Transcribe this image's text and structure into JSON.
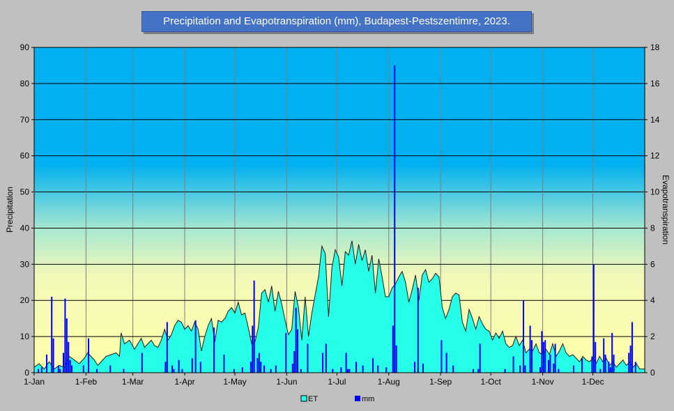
{
  "chart_data": {
    "type": "bar",
    "title": "Precipitation and Evapotranspiration (mm), Budapest-Pestszentimre,  2023.",
    "ylabel": "Precipitation",
    "y2label": "Evapotranspiration",
    "ylim": [
      0,
      90
    ],
    "y2lim": [
      0,
      18
    ],
    "yticks": [
      "0",
      "10",
      "20",
      "30",
      "40",
      "50",
      "60",
      "70",
      "80",
      "90"
    ],
    "y2ticks": [
      "0",
      "2",
      "4",
      "6",
      "8",
      "10",
      "12",
      "14",
      "16",
      "18"
    ],
    "xlim": [
      0,
      365
    ],
    "month_ticks": [
      {
        "label": "1-Jan",
        "day": 0
      },
      {
        "label": "1-Feb",
        "day": 31
      },
      {
        "label": "1-Mar",
        "day": 59
      },
      {
        "label": "1-Apr",
        "day": 90
      },
      {
        "label": "1-May",
        "day": 120
      },
      {
        "label": "1-Jun",
        "day": 151
      },
      {
        "label": "1-Jul",
        "day": 181
      },
      {
        "label": "1-Aug",
        "day": 212
      },
      {
        "label": "1-Sep",
        "day": 243
      },
      {
        "label": "1-Oct",
        "day": 273
      },
      {
        "label": "1-Nov",
        "day": 304
      },
      {
        "label": "1-Dec",
        "day": 334
      }
    ],
    "grid": true,
    "legend_position": "bottom",
    "series": [
      {
        "name": "ET",
        "type": "area",
        "color": "#26ffe8",
        "points": [
          [
            0,
            0.3
          ],
          [
            3,
            0.5
          ],
          [
            6,
            0.2
          ],
          [
            9,
            0.6
          ],
          [
            12,
            0.2
          ],
          [
            15,
            0.4
          ],
          [
            18,
            0.3
          ],
          [
            21,
            0.9
          ],
          [
            24,
            0.7
          ],
          [
            27,
            0.5
          ],
          [
            30,
            0.8
          ],
          [
            32,
            1.1
          ],
          [
            34,
            0.9
          ],
          [
            36,
            0.7
          ],
          [
            38,
            0.4
          ],
          [
            40,
            0.6
          ],
          [
            43,
            0.9
          ],
          [
            46,
            1.0
          ],
          [
            49,
            1.1
          ],
          [
            51,
            0.9
          ],
          [
            52,
            2.2
          ],
          [
            54,
            1.6
          ],
          [
            57,
            1.8
          ],
          [
            60,
            1.3
          ],
          [
            62,
            1.6
          ],
          [
            64,
            1.9
          ],
          [
            66,
            1.4
          ],
          [
            68,
            1.6
          ],
          [
            70,
            1.8
          ],
          [
            72,
            1.5
          ],
          [
            74,
            1.4
          ],
          [
            76,
            1.8
          ],
          [
            78,
            2.4
          ],
          [
            80,
            1.8
          ],
          [
            82,
            2.1
          ],
          [
            84,
            2.6
          ],
          [
            86,
            2.9
          ],
          [
            88,
            2.8
          ],
          [
            90,
            2.4
          ],
          [
            92,
            2.6
          ],
          [
            94,
            2.3
          ],
          [
            96,
            2.8
          ],
          [
            98,
            2.4
          ],
          [
            100,
            1.2
          ],
          [
            102,
            2.0
          ],
          [
            104,
            2.6
          ],
          [
            106,
            3.0
          ],
          [
            108,
            1.7
          ],
          [
            110,
            2.9
          ],
          [
            112,
            2.8
          ],
          [
            114,
            3.0
          ],
          [
            116,
            3.4
          ],
          [
            118,
            3.6
          ],
          [
            120,
            3.3
          ],
          [
            122,
            3.9
          ],
          [
            124,
            3.2
          ],
          [
            126,
            3.3
          ],
          [
            128,
            2.5
          ],
          [
            130,
            1.6
          ],
          [
            132,
            1.7
          ],
          [
            134,
            2.5
          ],
          [
            136,
            4.4
          ],
          [
            138,
            4.6
          ],
          [
            140,
            3.9
          ],
          [
            142,
            4.8
          ],
          [
            144,
            3.4
          ],
          [
            146,
            4.5
          ],
          [
            148,
            3.8
          ],
          [
            150,
            2.9
          ],
          [
            152,
            2.1
          ],
          [
            154,
            2.4
          ],
          [
            156,
            4.5
          ],
          [
            158,
            3.6
          ],
          [
            160,
            1.8
          ],
          [
            162,
            4.2
          ],
          [
            164,
            2.0
          ],
          [
            166,
            3.3
          ],
          [
            168,
            4.3
          ],
          [
            170,
            5.3
          ],
          [
            172,
            7.0
          ],
          [
            174,
            6.6
          ],
          [
            176,
            3.1
          ],
          [
            178,
            5.8
          ],
          [
            180,
            6.8
          ],
          [
            182,
            6.4
          ],
          [
            184,
            4.8
          ],
          [
            186,
            6.7
          ],
          [
            188,
            6.5
          ],
          [
            190,
            7.3
          ],
          [
            192,
            6.0
          ],
          [
            194,
            7.1
          ],
          [
            196,
            6.2
          ],
          [
            198,
            6.8
          ],
          [
            200,
            5.6
          ],
          [
            202,
            6.5
          ],
          [
            204,
            4.4
          ],
          [
            206,
            6.3
          ],
          [
            208,
            5.3
          ],
          [
            210,
            4.2
          ],
          [
            212,
            4.2
          ],
          [
            214,
            4.7
          ],
          [
            216,
            4.9
          ],
          [
            218,
            5.3
          ],
          [
            220,
            5.6
          ],
          [
            222,
            5.0
          ],
          [
            224,
            3.9
          ],
          [
            226,
            4.6
          ],
          [
            228,
            5.4
          ],
          [
            230,
            4.0
          ],
          [
            232,
            5.4
          ],
          [
            234,
            5.7
          ],
          [
            236,
            5.0
          ],
          [
            238,
            5.2
          ],
          [
            240,
            5.5
          ],
          [
            242,
            5.3
          ],
          [
            244,
            3.6
          ],
          [
            246,
            3.0
          ],
          [
            248,
            3.5
          ],
          [
            250,
            4.2
          ],
          [
            252,
            4.4
          ],
          [
            254,
            4.3
          ],
          [
            256,
            2.8
          ],
          [
            258,
            2.3
          ],
          [
            260,
            3.5
          ],
          [
            262,
            3.0
          ],
          [
            264,
            2.4
          ],
          [
            266,
            3.1
          ],
          [
            268,
            2.7
          ],
          [
            270,
            2.4
          ],
          [
            272,
            2.3
          ],
          [
            274,
            1.8
          ],
          [
            276,
            2.2
          ],
          [
            278,
            1.9
          ],
          [
            280,
            2.3
          ],
          [
            282,
            1.6
          ],
          [
            284,
            1.4
          ],
          [
            286,
            1.5
          ],
          [
            288,
            2.0
          ],
          [
            290,
            1.5
          ],
          [
            292,
            1.8
          ],
          [
            294,
            1.1
          ],
          [
            296,
            1.3
          ],
          [
            298,
            1.2
          ],
          [
            300,
            1.6
          ],
          [
            302,
            1.1
          ],
          [
            304,
            1.0
          ],
          [
            306,
            1.3
          ],
          [
            308,
            1.0
          ],
          [
            310,
            1.6
          ],
          [
            312,
            0.9
          ],
          [
            314,
            1.2
          ],
          [
            316,
            1.6
          ],
          [
            318,
            1.1
          ],
          [
            320,
            0.9
          ],
          [
            322,
            1.0
          ],
          [
            324,
            0.8
          ],
          [
            326,
            0.6
          ],
          [
            328,
            0.9
          ],
          [
            330,
            0.7
          ],
          [
            332,
            0.6
          ],
          [
            334,
            0.8
          ],
          [
            336,
            0.5
          ],
          [
            338,
            0.9
          ],
          [
            340,
            0.6
          ],
          [
            342,
            0.8
          ],
          [
            344,
            0.4
          ],
          [
            346,
            0.6
          ],
          [
            348,
            0.3
          ],
          [
            350,
            0.5
          ],
          [
            352,
            0.7
          ],
          [
            354,
            0.4
          ],
          [
            356,
            0.6
          ],
          [
            358,
            0.3
          ],
          [
            360,
            0.5
          ],
          [
            362,
            0.2
          ],
          [
            365,
            0.2
          ]
        ]
      },
      {
        "name": "mm",
        "type": "bar",
        "color": "#0000ff",
        "points": [
          [
            2,
            1.0
          ],
          [
            4,
            1.5
          ],
          [
            7,
            5.0
          ],
          [
            10,
            21.0
          ],
          [
            11,
            9.5
          ],
          [
            14,
            2.0
          ],
          [
            15,
            1.0
          ],
          [
            17,
            5.5
          ],
          [
            18,
            20.5
          ],
          [
            19,
            15.0
          ],
          [
            20,
            8.5
          ],
          [
            21,
            3.5
          ],
          [
            22,
            2.0
          ],
          [
            29,
            2.0
          ],
          [
            32,
            9.5
          ],
          [
            37,
            1.0
          ],
          [
            45,
            2.0
          ],
          [
            53,
            1.0
          ],
          [
            64,
            5.5
          ],
          [
            78,
            3.0
          ],
          [
            79,
            14.0
          ],
          [
            82,
            2.0
          ],
          [
            83,
            1.0
          ],
          [
            86,
            3.5
          ],
          [
            88,
            1.0
          ],
          [
            94,
            4.0
          ],
          [
            96,
            14.5
          ],
          [
            99,
            3.0
          ],
          [
            107,
            12.5
          ],
          [
            113,
            5.0
          ],
          [
            119,
            1.0
          ],
          [
            124,
            1.5
          ],
          [
            129,
            3.0
          ],
          [
            130,
            13.0
          ],
          [
            131,
            25.5
          ],
          [
            133,
            4.0
          ],
          [
            134,
            5.5
          ],
          [
            135,
            3.0
          ],
          [
            137,
            2.0
          ],
          [
            141,
            1.0
          ],
          [
            144,
            2.0
          ],
          [
            150,
            11.0
          ],
          [
            154,
            2.5
          ],
          [
            155,
            6.0
          ],
          [
            156,
            18.0
          ],
          [
            157,
            12.0
          ],
          [
            159,
            1.0
          ],
          [
            163,
            8.0
          ],
          [
            172,
            5.5
          ],
          [
            174,
            8.0
          ],
          [
            178,
            1.0
          ],
          [
            183,
            1.5
          ],
          [
            186,
            5.5
          ],
          [
            187,
            1.0
          ],
          [
            188,
            1.0
          ],
          [
            192,
            3.0
          ],
          [
            196,
            2.0
          ],
          [
            202,
            4.0
          ],
          [
            205,
            2.0
          ],
          [
            210,
            1.5
          ],
          [
            214,
            13.0
          ],
          [
            215,
            85.0
          ],
          [
            216,
            7.5
          ],
          [
            227,
            3.0
          ],
          [
            229,
            23.5
          ],
          [
            232,
            2.5
          ],
          [
            243,
            9.0
          ],
          [
            246,
            5.5
          ],
          [
            250,
            2.0
          ],
          [
            262,
            1.0
          ],
          [
            265,
            1.0
          ],
          [
            266,
            8.0
          ],
          [
            281,
            1.0
          ],
          [
            286,
            4.5
          ],
          [
            290,
            2.0
          ],
          [
            292,
            20.0
          ],
          [
            293,
            2.0
          ],
          [
            296,
            13.0
          ],
          [
            297,
            9.0
          ],
          [
            302,
            1.5
          ],
          [
            303,
            11.5
          ],
          [
            304,
            8.5
          ],
          [
            305,
            9.0
          ],
          [
            307,
            3.5
          ],
          [
            308,
            5.0
          ],
          [
            310,
            2.5
          ],
          [
            311,
            8.0
          ],
          [
            313,
            1.0
          ],
          [
            322,
            2.0
          ],
          [
            327,
            4.0
          ],
          [
            333,
            4.5
          ],
          [
            334,
            30.0
          ],
          [
            335,
            8.5
          ],
          [
            338,
            1.0
          ],
          [
            340,
            9.5
          ],
          [
            341,
            5.0
          ],
          [
            343,
            3.0
          ],
          [
            344,
            1.5
          ],
          [
            345,
            11.0
          ],
          [
            346,
            5.0
          ],
          [
            355,
            5.5
          ],
          [
            356,
            7.5
          ],
          [
            357,
            14.0
          ],
          [
            359,
            3.0
          ]
        ]
      }
    ]
  }
}
